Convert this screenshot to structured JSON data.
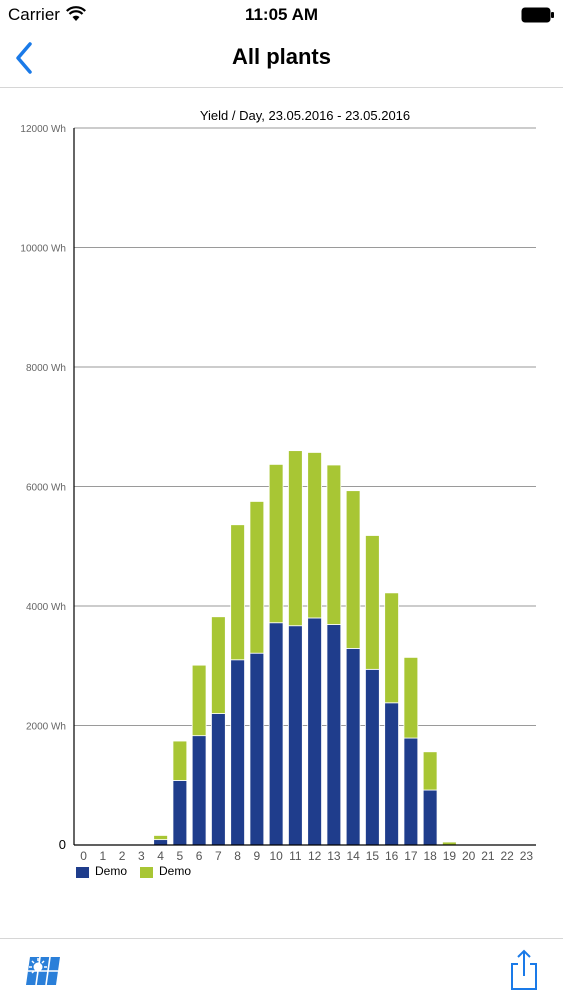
{
  "status": {
    "carrier": "Carrier",
    "time": "11:05 AM"
  },
  "nav": {
    "title": "All plants",
    "back_icon": "chevron-left-icon"
  },
  "colors": {
    "accent": "#1a7ae8",
    "series_blue": "#1f3d8c",
    "series_green": "#a8c634",
    "grid": "#9a9a9a"
  },
  "chart_data": {
    "type": "bar",
    "stacked": true,
    "title": "Yield / Day, 23.05.2016 - 23.05.2016",
    "xlabel": "",
    "ylabel": "",
    "ylim": [
      0,
      12000
    ],
    "y_ticks": [
      "0",
      "2000 Wh",
      "4000 Wh",
      "6000 Wh",
      "8000 Wh",
      "10000 Wh",
      "12000 Wh"
    ],
    "y_tick_values": [
      0,
      2000,
      4000,
      6000,
      8000,
      10000,
      12000
    ],
    "grid": true,
    "legend_position": "bottom-left",
    "categories": [
      "0",
      "1",
      "2",
      "3",
      "4",
      "5",
      "6",
      "7",
      "8",
      "9",
      "10",
      "11",
      "12",
      "13",
      "14",
      "15",
      "16",
      "17",
      "18",
      "19",
      "20",
      "21",
      "22",
      "23"
    ],
    "series": [
      {
        "name": "Demo",
        "color": "#1f3d8c",
        "values": [
          0,
          0,
          0,
          0,
          90,
          1080,
          1830,
          2200,
          3100,
          3210,
          3720,
          3670,
          3800,
          3690,
          3290,
          2940,
          2380,
          1790,
          920,
          0,
          0,
          0,
          0,
          0
        ]
      },
      {
        "name": "Demo",
        "color": "#a8c634",
        "values": [
          0,
          0,
          0,
          0,
          70,
          660,
          1180,
          1620,
          2260,
          2540,
          2650,
          2930,
          2770,
          2670,
          2640,
          2240,
          1840,
          1350,
          640,
          50,
          0,
          0,
          0,
          0
        ]
      }
    ]
  },
  "bottom": {
    "plants_icon": "solar-panel-icon",
    "share_icon": "share-icon"
  }
}
